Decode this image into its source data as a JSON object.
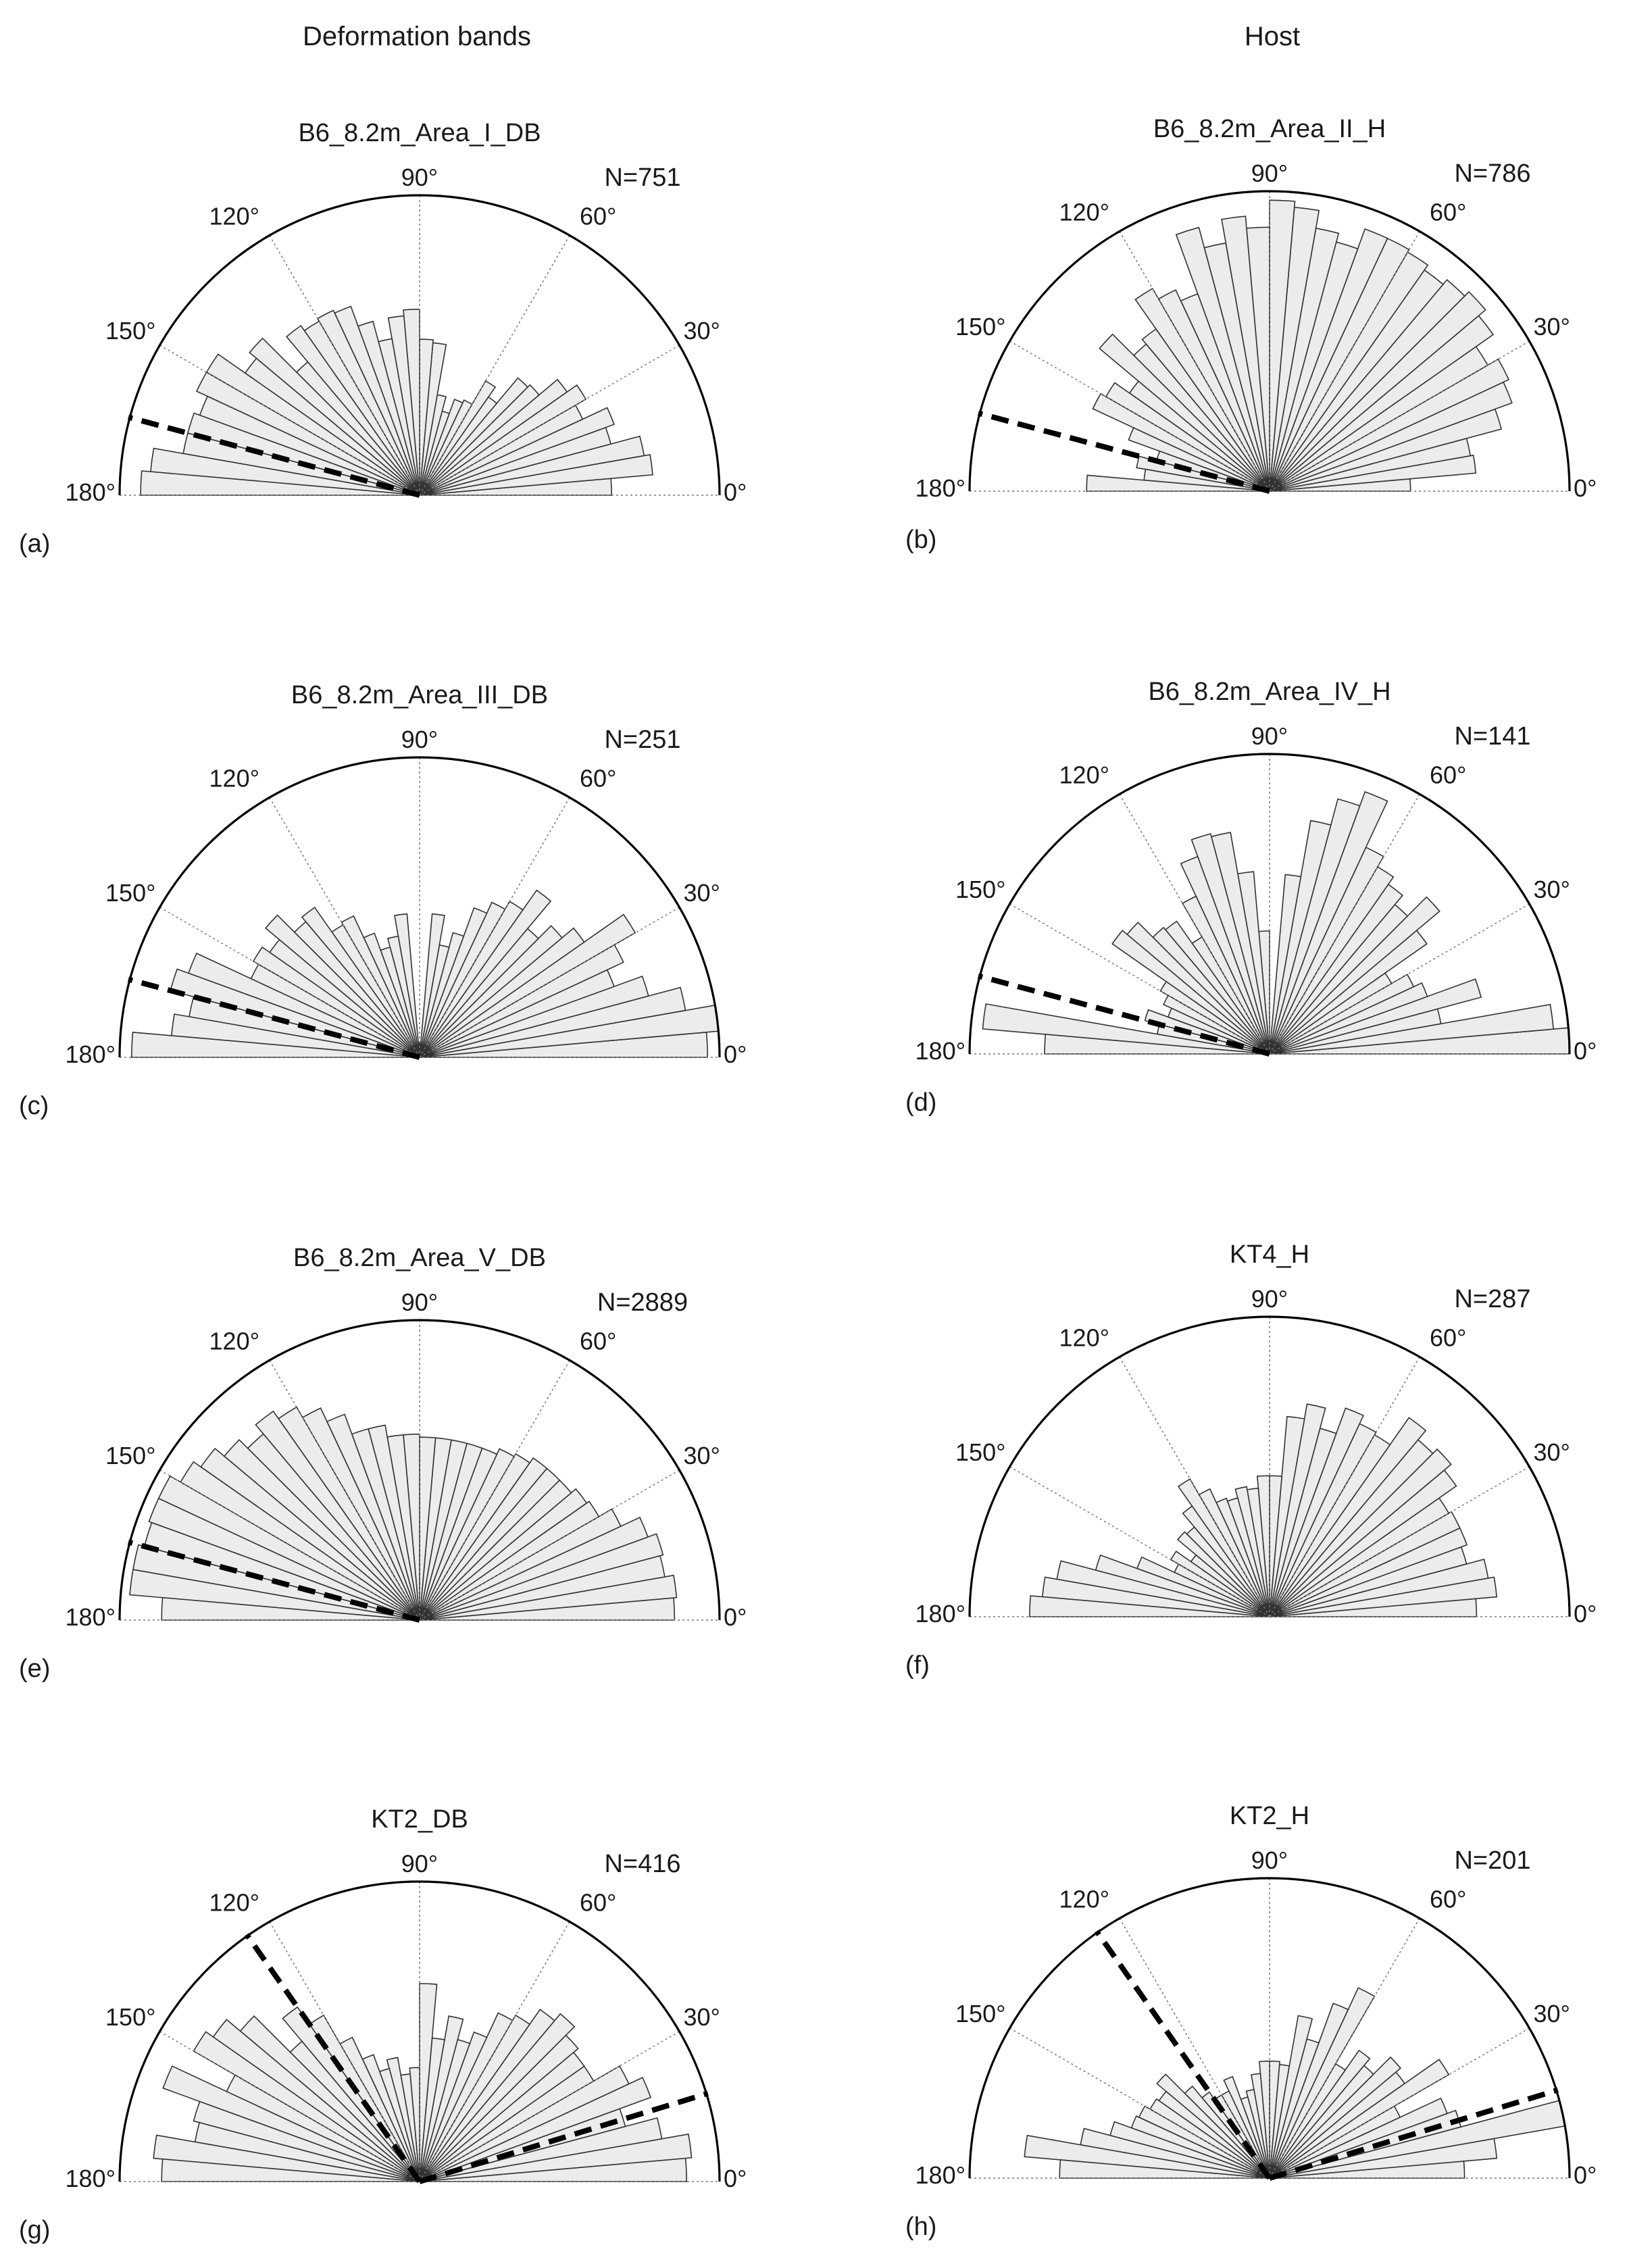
{
  "column_headers": [
    "Deformation bands",
    "Host"
  ],
  "angle_labels": [
    "0°",
    "30°",
    "60°",
    "90°",
    "120°",
    "150°",
    "180°"
  ],
  "chart_data": [
    {
      "type": "rose",
      "label": "(a)",
      "title": "B6_8.2m_Area_I_DB",
      "n_label": "N=751",
      "bin_width_deg": 5,
      "rmax": 1.0,
      "trend_deg": [
        165
      ],
      "values": [
        0.64,
        0.78,
        0.76,
        0.66,
        0.69,
        0.6,
        0.64,
        0.6,
        0.52,
        0.51,
        0.4,
        0.44,
        0.35,
        0.34,
        0.29,
        0.34,
        0.51,
        0.52,
        0.62,
        0.6,
        0.53,
        0.6,
        0.67,
        0.68,
        0.67,
        0.69,
        0.58,
        0.74,
        0.71,
        0.82,
        0.82,
        0.78,
        0.8,
        0.8,
        0.9,
        0.93
      ]
    },
    {
      "type": "rose",
      "label": "(b)",
      "title": "B6_8.2m_Area_II_H",
      "n_label": "N=786",
      "bin_width_deg": 5,
      "rmax": 1.0,
      "trend_deg": [
        165
      ],
      "values": [
        0.47,
        0.69,
        0.68,
        0.8,
        0.86,
        0.88,
        0.84,
        0.91,
        0.94,
        0.92,
        0.9,
        0.92,
        0.93,
        0.93,
        0.86,
        0.89,
        0.95,
        0.97,
        0.88,
        0.92,
        0.84,
        0.91,
        0.7,
        0.74,
        0.78,
        0.66,
        0.64,
        0.74,
        0.57,
        0.63,
        0.65,
        0.5,
        0.39,
        0.45,
        0.42,
        0.61
      ]
    },
    {
      "type": "rose",
      "label": "(c)",
      "title": "B6_8.2m_Area_III_DB",
      "n_label": "N=251",
      "bin_width_deg": 5,
      "rmax": 1.0,
      "trend_deg": [
        165
      ],
      "values": [
        0.96,
        1.0,
        0.9,
        0.79,
        0.69,
        0.75,
        0.83,
        0.67,
        0.62,
        0.56,
        0.68,
        0.6,
        0.57,
        0.53,
        0.43,
        0.38,
        0.48,
        0.05,
        0.05,
        0.48,
        0.41,
        0.38,
        0.44,
        0.52,
        0.51,
        0.61,
        0.59,
        0.67,
        0.61,
        0.64,
        0.62,
        0.82,
        0.86,
        0.78,
        0.83,
        0.96
      ]
    },
    {
      "type": "rose",
      "label": "(d)",
      "title": "B6_8.2m_Area_IV_H",
      "n_label": "N=141",
      "bin_width_deg": 5,
      "rmax": 1.0,
      "trend_deg": [
        165
      ],
      "values": [
        1.0,
        0.95,
        0.58,
        0.73,
        0.56,
        0.53,
        0.47,
        0.64,
        0.74,
        0.65,
        0.69,
        0.72,
        0.76,
        0.93,
        0.88,
        0.79,
        0.6,
        0.05,
        0.41,
        0.61,
        0.75,
        0.76,
        0.7,
        0.58,
        0.45,
        0.54,
        0.55,
        0.62,
        0.64,
        0.42,
        0.39,
        0.36,
        0.43,
        0.38,
        0.96,
        0.75
      ]
    },
    {
      "type": "rose",
      "label": "(e)",
      "title": "B6_8.2m_Area_V_DB",
      "n_label": "N=2889",
      "bin_width_deg": 5,
      "rmax": 1.0,
      "trend_deg": [
        165
      ],
      "values": [
        0.85,
        0.86,
        0.83,
        0.84,
        0.81,
        0.74,
        0.69,
        0.68,
        0.66,
        0.66,
        0.66,
        0.64,
        0.63,
        0.61,
        0.61,
        0.61,
        0.61,
        0.61,
        0.62,
        0.62,
        0.66,
        0.66,
        0.73,
        0.78,
        0.82,
        0.85,
        0.81,
        0.85,
        0.89,
        0.92,
        0.96,
        0.96,
        0.95,
        0.97,
        0.97,
        0.86
      ]
    },
    {
      "type": "rose",
      "label": "(f)",
      "title": "KT4_H",
      "n_label": "N=287",
      "bin_width_deg": 5,
      "rmax": 1.0,
      "trend_deg": [],
      "values": [
        0.69,
        0.76,
        0.74,
        0.68,
        0.7,
        0.7,
        0.69,
        0.76,
        0.79,
        0.77,
        0.81,
        0.7,
        0.71,
        0.74,
        0.65,
        0.72,
        0.67,
        0.47,
        0.47,
        0.43,
        0.44,
        0.41,
        0.42,
        0.47,
        0.53,
        0.45,
        0.39,
        0.4,
        0.32,
        0.38,
        0.35,
        0.47,
        0.6,
        0.72,
        0.76,
        0.8
      ]
    },
    {
      "type": "rose",
      "label": "(g)",
      "title": "KT2_DB",
      "n_label": "N=416",
      "bin_width_deg": 5,
      "rmax": 1.0,
      "trend_deg": [
        125,
        17
      ],
      "values": [
        0.89,
        0.91,
        0.82,
        0.71,
        0.82,
        0.77,
        0.67,
        0.67,
        0.69,
        0.73,
        0.7,
        0.64,
        0.62,
        0.53,
        0.49,
        0.56,
        0.48,
        0.66,
        0.38,
        0.36,
        0.42,
        0.39,
        0.45,
        0.53,
        0.64,
        0.71,
        0.61,
        0.78,
        0.84,
        0.87,
        0.71,
        0.91,
        0.78,
        0.76,
        0.89,
        0.86
      ]
    },
    {
      "type": "rose",
      "label": "(h)",
      "title": "KT2_H",
      "n_label": "N=201",
      "bin_width_deg": 5,
      "rmax": 1.0,
      "trend_deg": [
        125,
        17
      ],
      "values": [
        0.65,
        0.76,
        1.0,
        0.66,
        0.63,
        0.48,
        0.69,
        0.55,
        0.57,
        0.49,
        0.52,
        0.44,
        0.7,
        0.62,
        0.48,
        0.55,
        0.38,
        0.39,
        0.39,
        0.35,
        0.3,
        0.28,
        0.36,
        0.32,
        0.32,
        0.35,
        0.4,
        0.49,
        0.45,
        0.46,
        0.48,
        0.49,
        0.55,
        0.64,
        0.82,
        0.7
      ]
    }
  ]
}
